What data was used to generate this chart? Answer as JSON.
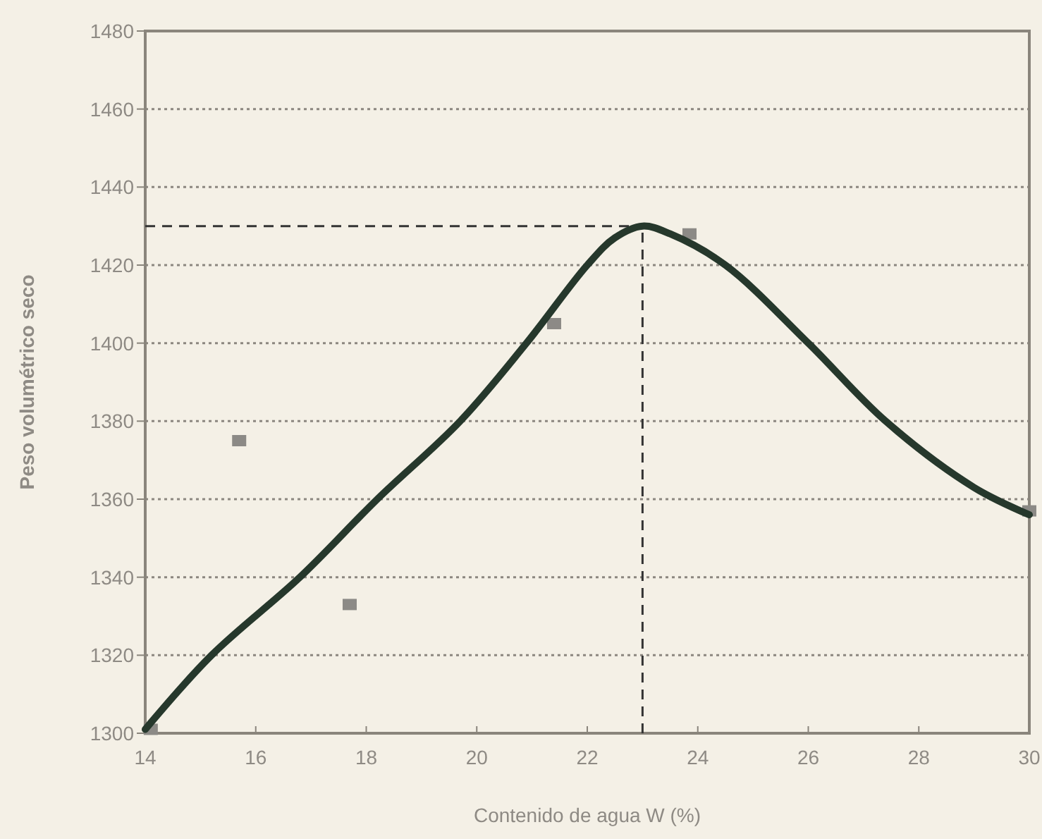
{
  "chart_data": {
    "type": "line",
    "xlabel": "Contenido de agua W (%)",
    "ylabel": "Peso volumétrico seco",
    "xlim": [
      14,
      30
    ],
    "xticks": [
      14,
      16,
      18,
      20,
      22,
      24,
      26,
      28,
      30
    ],
    "ylim": [
      1300,
      1480
    ],
    "yticks": [
      1300,
      1320,
      1340,
      1360,
      1380,
      1400,
      1420,
      1440,
      1460,
      1480
    ],
    "grid": "y",
    "series": [
      {
        "type": "scatter",
        "marker": "square",
        "color": "#8c8a86",
        "x": [
          14.1,
          15.7,
          17.7,
          21.4,
          23.85,
          30
        ],
        "values": [
          1301,
          1375,
          1333,
          1405,
          1428,
          1357
        ]
      },
      {
        "marker": "none",
        "line_style": "solid",
        "color": "#26382c",
        "x": [
          14,
          15.2,
          16.8,
          18.2,
          19.7,
          20.9,
          22,
          22.5,
          23,
          23.5,
          24.5,
          26,
          27.4,
          29,
          30
        ],
        "values": [
          1301,
          1320,
          1340,
          1360,
          1380,
          1400,
          1420,
          1427,
          1430,
          1428,
          1420,
          1400,
          1380,
          1363,
          1356
        ]
      }
    ],
    "ref_lines": [
      {
        "axis": "y",
        "value": 1430,
        "line_style": "dashed"
      },
      {
        "axis": "x",
        "value": 23,
        "line_style": "dashed"
      }
    ]
  }
}
